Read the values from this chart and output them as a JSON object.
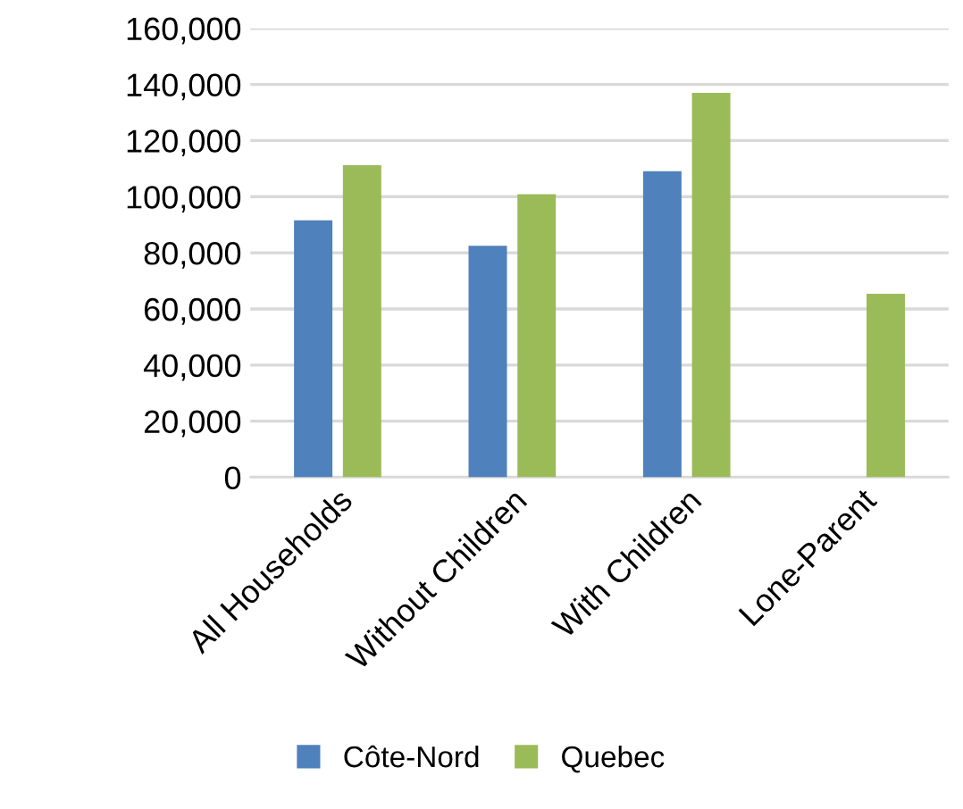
{
  "chart_data": {
    "type": "bar",
    "categories": [
      "All Households",
      "Without Children",
      "With Children",
      "Lone-Parent"
    ],
    "series": [
      {
        "name": "Côte-Nord",
        "color": "#4f81bd",
        "values": [
          91600,
          82500,
          109100,
          null
        ]
      },
      {
        "name": "Quebec",
        "color": "#9bbb59",
        "values": [
          111200,
          100900,
          137000,
          65400
        ]
      }
    ],
    "ylim": [
      0,
      160000
    ],
    "yticks": [
      {
        "value": 0,
        "label": "0"
      },
      {
        "value": 20000,
        "label": "20,000"
      },
      {
        "value": 40000,
        "label": "40,000"
      },
      {
        "value": 60000,
        "label": "60,000"
      },
      {
        "value": 80000,
        "label": "80,000"
      },
      {
        "value": 100000,
        "label": "100,000"
      },
      {
        "value": 120000,
        "label": "120,000"
      },
      {
        "value": 140000,
        "label": "140,000"
      },
      {
        "value": 160000,
        "label": "160,000"
      }
    ],
    "grid": "y",
    "legend": "bottom"
  }
}
